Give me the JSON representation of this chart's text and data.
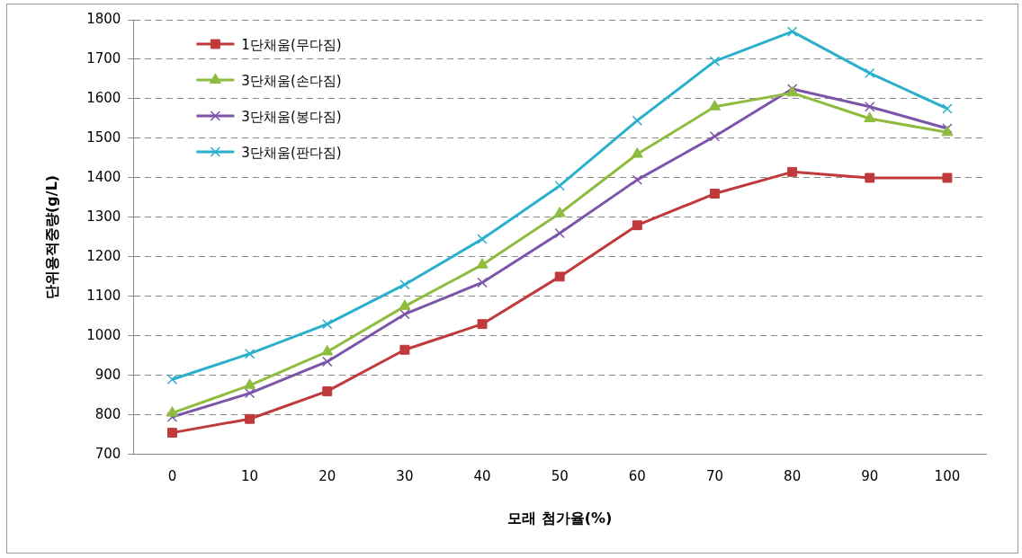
{
  "chart_data": {
    "type": "line",
    "xlabel": "모래 첨가율(%)",
    "ylabel": "단위용적중량(g/L)",
    "categories": [
      "0",
      "10",
      "20",
      "30",
      "40",
      "50",
      "60",
      "70",
      "80",
      "90",
      "100"
    ],
    "series": [
      {
        "name": "1단채움(무다짐)",
        "color": "#c0393b",
        "marker": "square",
        "values": [
          755,
          790,
          860,
          965,
          1030,
          1150,
          1280,
          1360,
          1415,
          1400,
          1400
        ]
      },
      {
        "name": "3단채움(손다짐)",
        "color": "#8fbc3f",
        "marker": "triangle",
        "values": [
          805,
          875,
          960,
          1075,
          1180,
          1310,
          1460,
          1580,
          1615,
          1550,
          1515
        ]
      },
      {
        "name": "3단채움(봉다짐)",
        "color": "#7b55a8",
        "marker": "cross",
        "values": [
          795,
          855,
          935,
          1055,
          1135,
          1260,
          1395,
          1505,
          1625,
          1580,
          1525
        ]
      },
      {
        "name": "3단채움(판다짐)",
        "color": "#2bb0cc",
        "marker": "cross",
        "values": [
          890,
          955,
          1030,
          1130,
          1245,
          1380,
          1545,
          1695,
          1770,
          1665,
          1575
        ]
      }
    ],
    "ylim": [
      700,
      1800
    ],
    "yticks": [
      700,
      800,
      900,
      1000,
      1100,
      1200,
      1300,
      1400,
      1500,
      1600,
      1700,
      1800
    ],
    "grid": "y",
    "legend": "top left",
    "line_style": "solid"
  }
}
